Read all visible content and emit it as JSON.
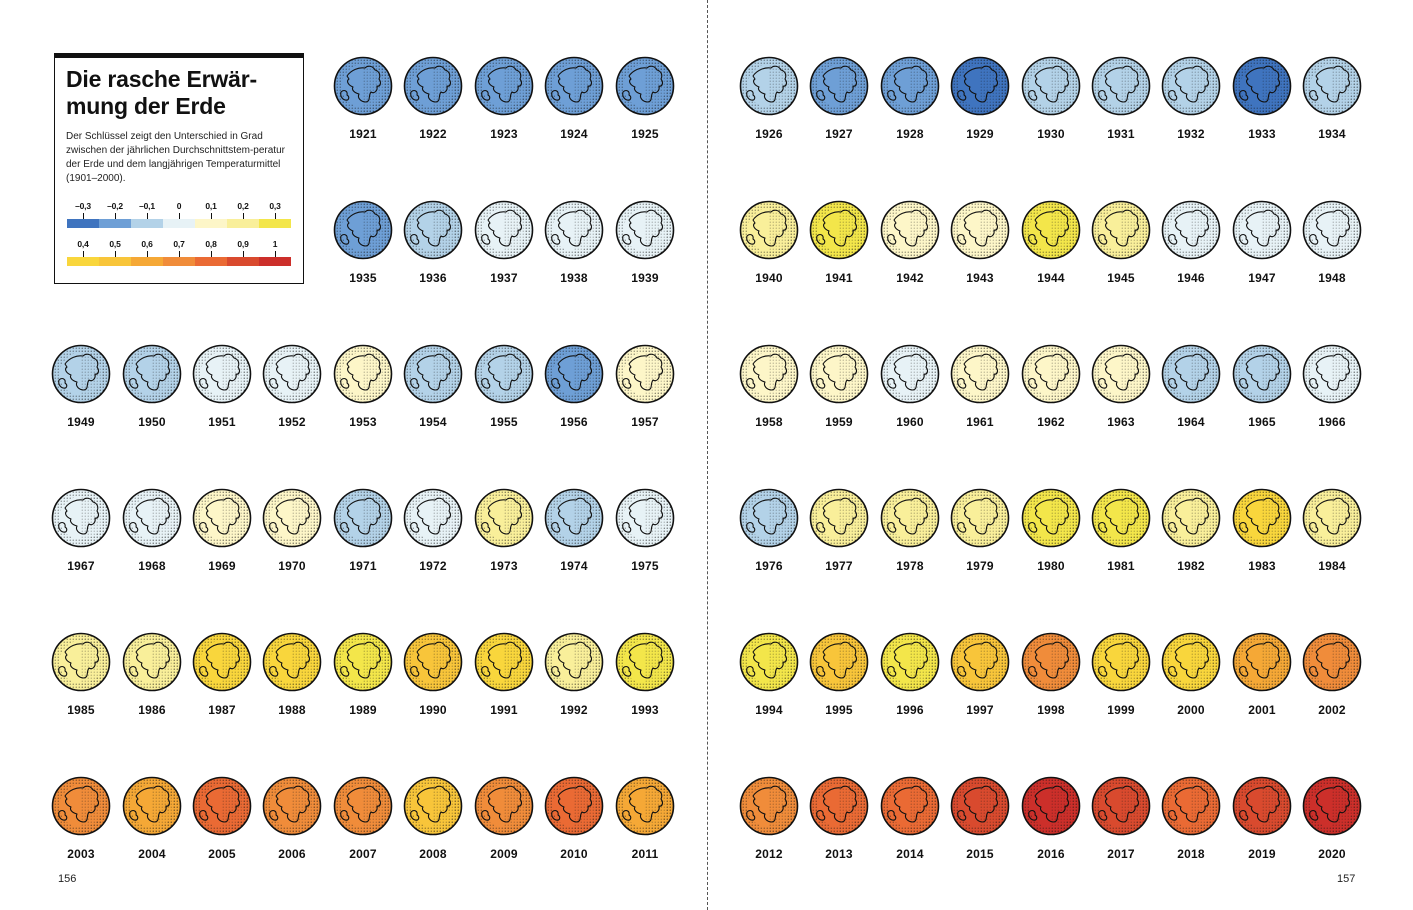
{
  "title": "Die rasche Erwär-mung der Erde",
  "title_line1": "Die rasche Erwär-",
  "title_line2": "mung der Erde",
  "description": "Der Schlüssel zeigt den Unterschied in Grad zwischen der jährlichen Durchschnittstem-peratur der Erde und dem langjährigen Temperaturmittel (1901–2000).",
  "key_scale": [
    {
      "label": "–0,3",
      "color": "#3f74bf"
    },
    {
      "label": "–0,2",
      "color": "#6e9fd6"
    },
    {
      "label": "–0,1",
      "color": "#b3d2e8"
    },
    {
      "label": "0",
      "color": "#e7f2f6"
    },
    {
      "label": "0,1",
      "color": "#fdf6c8"
    },
    {
      "label": "0,2",
      "color": "#f9ef9a"
    },
    {
      "label": "0,3",
      "color": "#f3e64a"
    },
    {
      "label": "0,4",
      "color": "#f9d63c"
    },
    {
      "label": "0,5",
      "color": "#f8c53a"
    },
    {
      "label": "0,6",
      "color": "#f5a836"
    },
    {
      "label": "0,7",
      "color": "#f08c3a"
    },
    {
      "label": "0,8",
      "color": "#ea6a34"
    },
    {
      "label": "0,9",
      "color": "#d94a2e"
    },
    {
      "label": "1",
      "color": "#cc2f2a"
    }
  ],
  "globes": [
    {
      "year": "1921",
      "anomaly": -0.2
    },
    {
      "year": "1922",
      "anomaly": -0.2
    },
    {
      "year": "1923",
      "anomaly": -0.2
    },
    {
      "year": "1924",
      "anomaly": -0.2
    },
    {
      "year": "1925",
      "anomaly": -0.2
    },
    {
      "year": "1926",
      "anomaly": -0.1
    },
    {
      "year": "1927",
      "anomaly": -0.2
    },
    {
      "year": "1928",
      "anomaly": -0.2
    },
    {
      "year": "1929",
      "anomaly": -0.3
    },
    {
      "year": "1930",
      "anomaly": -0.1
    },
    {
      "year": "1931",
      "anomaly": -0.1
    },
    {
      "year": "1932",
      "anomaly": -0.1
    },
    {
      "year": "1933",
      "anomaly": -0.3
    },
    {
      "year": "1934",
      "anomaly": -0.1
    },
    {
      "year": "1935",
      "anomaly": -0.2
    },
    {
      "year": "1936",
      "anomaly": -0.1
    },
    {
      "year": "1937",
      "anomaly": 0
    },
    {
      "year": "1938",
      "anomaly": 0
    },
    {
      "year": "1939",
      "anomaly": 0
    },
    {
      "year": "1940",
      "anomaly": 0.2
    },
    {
      "year": "1941",
      "anomaly": 0.3
    },
    {
      "year": "1942",
      "anomaly": 0.1
    },
    {
      "year": "1943",
      "anomaly": 0.1
    },
    {
      "year": "1944",
      "anomaly": 0.3
    },
    {
      "year": "1945",
      "anomaly": 0.2
    },
    {
      "year": "1946",
      "anomaly": 0
    },
    {
      "year": "1947",
      "anomaly": 0
    },
    {
      "year": "1948",
      "anomaly": 0
    },
    {
      "year": "1949",
      "anomaly": -0.1
    },
    {
      "year": "1950",
      "anomaly": -0.1
    },
    {
      "year": "1951",
      "anomaly": 0
    },
    {
      "year": "1952",
      "anomaly": 0
    },
    {
      "year": "1953",
      "anomaly": 0.1
    },
    {
      "year": "1954",
      "anomaly": -0.1
    },
    {
      "year": "1955",
      "anomaly": -0.1
    },
    {
      "year": "1956",
      "anomaly": -0.2
    },
    {
      "year": "1957",
      "anomaly": 0.1
    },
    {
      "year": "1958",
      "anomaly": 0.1
    },
    {
      "year": "1959",
      "anomaly": 0.1
    },
    {
      "year": "1960",
      "anomaly": 0
    },
    {
      "year": "1961",
      "anomaly": 0.1
    },
    {
      "year": "1962",
      "anomaly": 0.1
    },
    {
      "year": "1963",
      "anomaly": 0.1
    },
    {
      "year": "1964",
      "anomaly": -0.1
    },
    {
      "year": "1965",
      "anomaly": -0.1
    },
    {
      "year": "1966",
      "anomaly": 0
    },
    {
      "year": "1967",
      "anomaly": 0
    },
    {
      "year": "1968",
      "anomaly": 0
    },
    {
      "year": "1969",
      "anomaly": 0.1
    },
    {
      "year": "1970",
      "anomaly": 0.1
    },
    {
      "year": "1971",
      "anomaly": -0.1
    },
    {
      "year": "1972",
      "anomaly": 0
    },
    {
      "year": "1973",
      "anomaly": 0.2
    },
    {
      "year": "1974",
      "anomaly": -0.1
    },
    {
      "year": "1975",
      "anomaly": 0
    },
    {
      "year": "1976",
      "anomaly": -0.1
    },
    {
      "year": "1977",
      "anomaly": 0.2
    },
    {
      "year": "1978",
      "anomaly": 0.2
    },
    {
      "year": "1979",
      "anomaly": 0.2
    },
    {
      "year": "1980",
      "anomaly": 0.3
    },
    {
      "year": "1981",
      "anomaly": 0.3
    },
    {
      "year": "1982",
      "anomaly": 0.2
    },
    {
      "year": "1983",
      "anomaly": 0.4
    },
    {
      "year": "1984",
      "anomaly": 0.2
    },
    {
      "year": "1985",
      "anomaly": 0.2
    },
    {
      "year": "1986",
      "anomaly": 0.2
    },
    {
      "year": "1987",
      "anomaly": 0.4
    },
    {
      "year": "1988",
      "anomaly": 0.4
    },
    {
      "year": "1989",
      "anomaly": 0.3
    },
    {
      "year": "1990",
      "anomaly": 0.5
    },
    {
      "year": "1991",
      "anomaly": 0.4
    },
    {
      "year": "1992",
      "anomaly": 0.2
    },
    {
      "year": "1993",
      "anomaly": 0.3
    },
    {
      "year": "1994",
      "anomaly": 0.3
    },
    {
      "year": "1995",
      "anomaly": 0.5
    },
    {
      "year": "1996",
      "anomaly": 0.3
    },
    {
      "year": "1997",
      "anomaly": 0.5
    },
    {
      "year": "1998",
      "anomaly": 0.7
    },
    {
      "year": "1999",
      "anomaly": 0.4
    },
    {
      "year": "2000",
      "anomaly": 0.4
    },
    {
      "year": "2001",
      "anomaly": 0.6
    },
    {
      "year": "2002",
      "anomaly": 0.7
    },
    {
      "year": "2003",
      "anomaly": 0.7
    },
    {
      "year": "2004",
      "anomaly": 0.6
    },
    {
      "year": "2005",
      "anomaly": 0.8
    },
    {
      "year": "2006",
      "anomaly": 0.7
    },
    {
      "year": "2007",
      "anomaly": 0.7
    },
    {
      "year": "2008",
      "anomaly": 0.5
    },
    {
      "year": "2009",
      "anomaly": 0.7
    },
    {
      "year": "2010",
      "anomaly": 0.8
    },
    {
      "year": "2011",
      "anomaly": 0.6
    },
    {
      "year": "2012",
      "anomaly": 0.7
    },
    {
      "year": "2013",
      "anomaly": 0.8
    },
    {
      "year": "2014",
      "anomaly": 0.8
    },
    {
      "year": "2015",
      "anomaly": 0.9
    },
    {
      "year": "2016",
      "anomaly": 1
    },
    {
      "year": "2017",
      "anomaly": 0.9
    },
    {
      "year": "2018",
      "anomaly": 0.8
    },
    {
      "year": "2019",
      "anomaly": 0.9
    },
    {
      "year": "2020",
      "anomaly": 1
    }
  ],
  "page_left": "156",
  "page_right": "157"
}
